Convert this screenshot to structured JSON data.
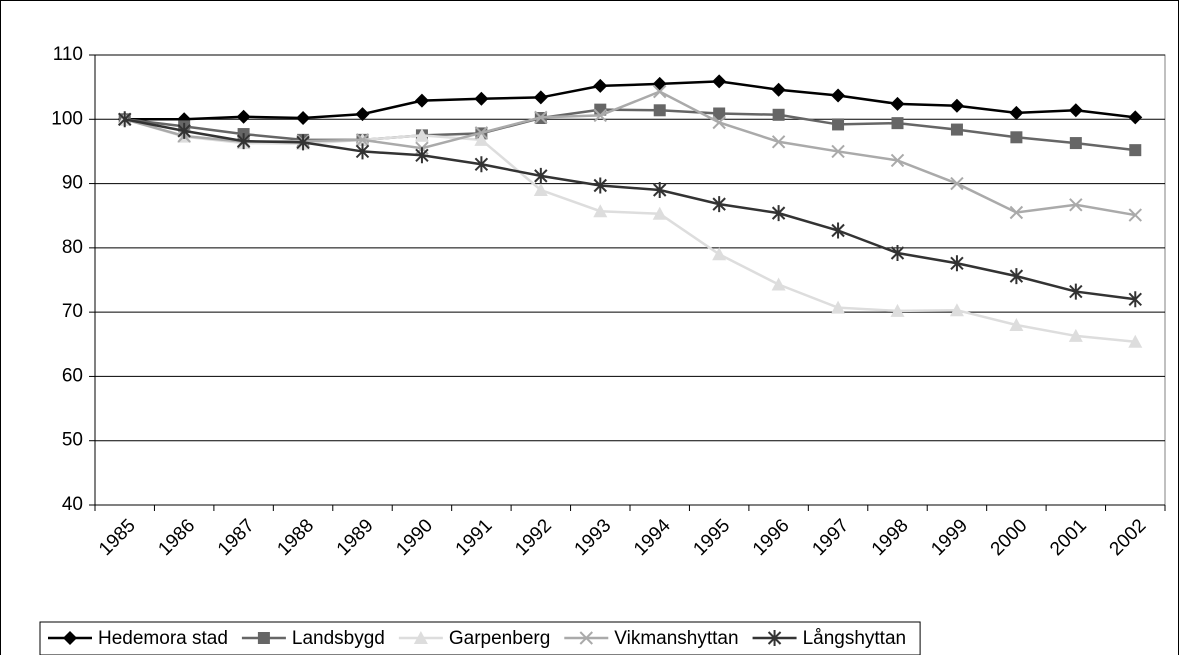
{
  "chart_data": {
    "type": "line",
    "categories": [
      "1985",
      "1986",
      "1987",
      "1988",
      "1989",
      "1990",
      "1991",
      "1992",
      "1993",
      "1994",
      "1995",
      "1996",
      "1997",
      "1998",
      "1999",
      "2000",
      "2001",
      "2002"
    ],
    "series": [
      {
        "name": "Hedemora stad",
        "color": "#000000",
        "marker": "diamond",
        "values": [
          100,
          100,
          100.4,
          100.2,
          100.8,
          102.9,
          103.2,
          103.4,
          105.2,
          105.5,
          105.9,
          104.6,
          103.7,
          102.4,
          102.1,
          101,
          101.4,
          100.3
        ]
      },
      {
        "name": "Landsbygd",
        "color": "#666666",
        "marker": "square",
        "values": [
          100,
          98.9,
          97.7,
          96.8,
          96.8,
          97.5,
          97.8,
          100.2,
          101.5,
          101.4,
          100.9,
          100.7,
          99.2,
          99.4,
          98.4,
          97.2,
          96.3,
          95.2
        ]
      },
      {
        "name": "Garpenberg",
        "color": "#dddddd",
        "marker": "triangle",
        "values": [
          100,
          97.3,
          96.3,
          96.2,
          96.8,
          97.5,
          96.8,
          89,
          85.7,
          85.3,
          79,
          74.3,
          70.7,
          70.2,
          70.3,
          68,
          66.3,
          65.4
        ]
      },
      {
        "name": "Vikmanshyttan",
        "color": "#aaaaaa",
        "marker": "x",
        "values": [
          100,
          97.4,
          96.5,
          96.6,
          96.8,
          95.5,
          97.9,
          100.3,
          100.6,
          104.3,
          99.5,
          96.5,
          95,
          93.6,
          90,
          85.5,
          86.7,
          85.1
        ]
      },
      {
        "name": "Långshyttan",
        "color": "#333333",
        "marker": "star",
        "values": [
          100,
          98.2,
          96.6,
          96.4,
          95,
          94.4,
          93,
          91.2,
          89.7,
          89,
          86.8,
          85.4,
          82.7,
          79.2,
          77.6,
          75.6,
          73.2,
          72
        ]
      }
    ],
    "ylim": [
      40,
      110
    ],
    "yticks": [
      40,
      50,
      60,
      70,
      80,
      90,
      100,
      110
    ],
    "grid": true,
    "legend": "bottom"
  }
}
